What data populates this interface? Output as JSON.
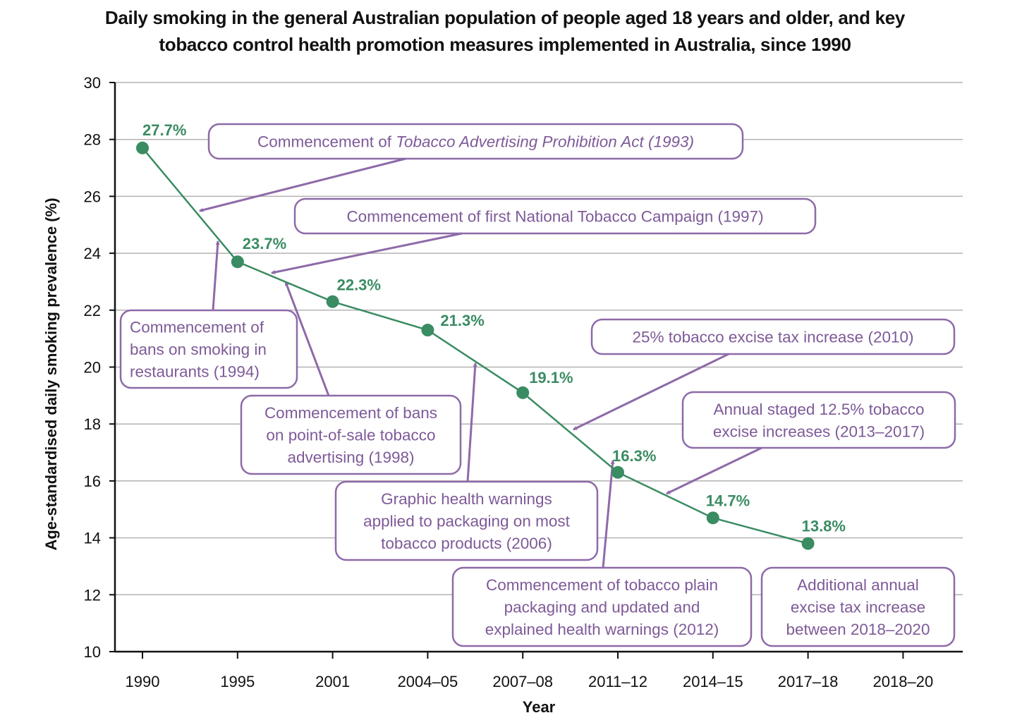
{
  "title_line1": "Daily smoking in the general Australian population of people aged 18 years and older, and key",
  "title_line2": "tobacco control health promotion measures implemented in Australia, since 1990",
  "colors": {
    "series": "#3a8c62",
    "annotation": "#8e6aa8",
    "annotation_text": "#7e5a98",
    "grid": "#b3b3b3",
    "axis": "#111111"
  },
  "chart_data": {
    "type": "line",
    "xlabel": "Year",
    "ylabel": "Age-standardised daily smoking prevalence (%)",
    "ylim": [
      10,
      30
    ],
    "yticks": [
      10,
      12,
      14,
      16,
      18,
      20,
      22,
      24,
      26,
      28,
      30
    ],
    "categories": [
      "1990",
      "1995",
      "2001",
      "2004–05",
      "2007–08",
      "2011–12",
      "2014–15",
      "2017–18",
      "2018–20"
    ],
    "grid": "horizontal",
    "series": [
      {
        "values": [
          27.7,
          23.7,
          22.3,
          21.3,
          19.1,
          16.3,
          14.7,
          13.8,
          null
        ],
        "labels": [
          "27.7%",
          "23.7%",
          "22.3%",
          "21.3%",
          "19.1%",
          "16.3%",
          "14.7%",
          "13.8%",
          ""
        ]
      }
    ],
    "annotations": [
      {
        "id": "tobacco-advertising-act",
        "lines": [
          "Commencement of |Tobacco Advertising Prohibition Act (1993)"
        ]
      },
      {
        "id": "national-tobacco-campaign",
        "lines": [
          "Commencement of first National Tobacco Campaign (1997)"
        ]
      },
      {
        "id": "restaurant-smoking-bans",
        "lines": [
          "Commencement of",
          "bans on smoking in",
          "restaurants (1994)"
        ]
      },
      {
        "id": "point-of-sale-bans",
        "lines": [
          "Commencement of bans",
          "on point-of-sale tobacco",
          "advertising (1998)"
        ]
      },
      {
        "id": "graphic-health-warnings",
        "lines": [
          "Graphic health warnings",
          "applied to packaging on most",
          "tobacco products (2006)"
        ]
      },
      {
        "id": "excise-increase-2010",
        "lines": [
          "25% tobacco excise tax increase (2010)"
        ]
      },
      {
        "id": "staged-excise-increases",
        "lines": [
          "Annual staged 12.5% tobacco",
          "excise increases (2013–2017)"
        ]
      },
      {
        "id": "plain-packaging",
        "lines": [
          "Commencement of tobacco plain",
          "packaging and updated and",
          "explained health warnings (2012)"
        ]
      },
      {
        "id": "additional-excise-2018-2020",
        "lines": [
          "Additional annual",
          "excise tax increase",
          "between 2018–2020"
        ]
      }
    ]
  }
}
